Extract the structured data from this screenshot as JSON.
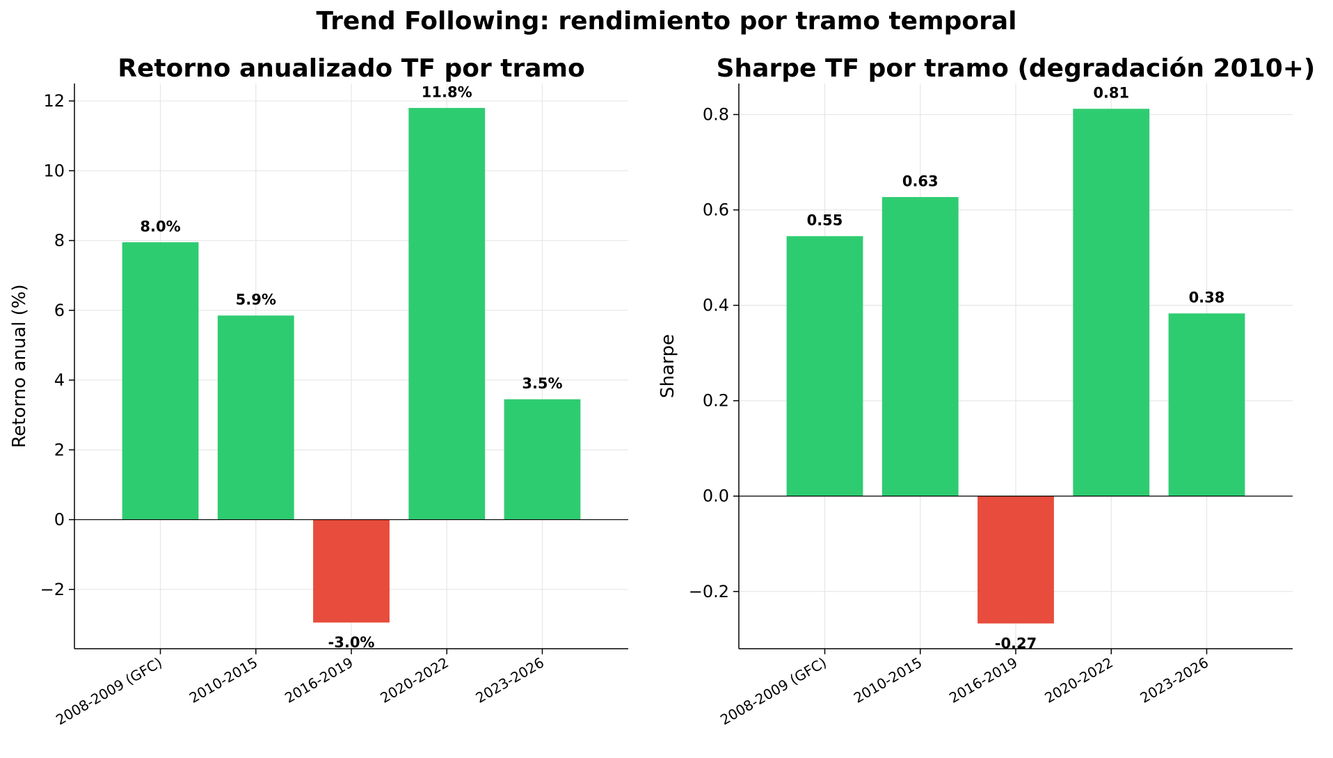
{
  "figure_title": "Trend Following: rendimiento por tramo temporal",
  "colors": {
    "positive": "#2ecc71",
    "negative": "#e74c3c"
  },
  "chart_data": [
    {
      "type": "bar",
      "title": "Retorno anualizado TF por tramo",
      "xlabel": "",
      "ylabel": "Retorno anual (%)",
      "categories": [
        "2008-2009 (GFC)",
        "2010-2015",
        "2016-2019",
        "2020-2022",
        "2023-2026"
      ],
      "values": [
        7.95,
        5.85,
        -2.95,
        11.8,
        3.45
      ],
      "data_labels": [
        "8.0%",
        "5.9%",
        "-3.0%",
        "11.8%",
        "3.5%"
      ],
      "ylim": [
        -3.7,
        12.5
      ],
      "yticks": [
        -2,
        0,
        2,
        4,
        6,
        8,
        10,
        12
      ],
      "ytick_labels": [
        "−2",
        "0",
        "2",
        "4",
        "6",
        "8",
        "10",
        "12"
      ],
      "grid": true
    },
    {
      "type": "bar",
      "title": "Sharpe TF por tramo (degradación 2010+)",
      "xlabel": "",
      "ylabel": "Sharpe",
      "categories": [
        "2008-2009 (GFC)",
        "2010-2015",
        "2016-2019",
        "2020-2022",
        "2023-2026"
      ],
      "values": [
        0.545,
        0.627,
        -0.267,
        0.812,
        0.383
      ],
      "data_labels": [
        "0.55",
        "0.63",
        "-0.27",
        "0.81",
        "0.38"
      ],
      "ylim": [
        -0.32,
        0.865
      ],
      "yticks": [
        -0.2,
        0.0,
        0.2,
        0.4,
        0.6,
        0.8
      ],
      "ytick_labels": [
        "−0.2",
        "0.0",
        "0.2",
        "0.4",
        "0.6",
        "0.8"
      ],
      "grid": true
    }
  ]
}
